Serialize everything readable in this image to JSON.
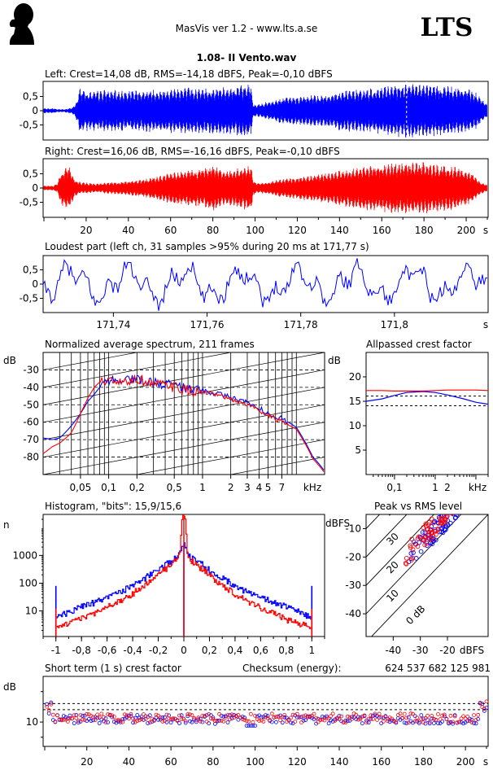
{
  "header": {
    "app_title": "MasVis ver 1.2 - www.lts.a.se",
    "logo_text": "LTS",
    "file_title": "1.08- II Vento.wav"
  },
  "colors": {
    "left": "#0000ff",
    "right": "#ff0000",
    "axes": "#000000"
  },
  "chart_data": [
    {
      "id": "left_wave",
      "type": "line",
      "title": "Left: Crest=14,08 dB, RMS=-14,18 dBFS, Peak=-0,10 dBFS",
      "ylim": [
        -1,
        1
      ],
      "yticks": [
        0.5,
        0,
        -0.5
      ],
      "ytick_labels": [
        "0,5",
        "0",
        "-0,5"
      ],
      "xlim": [
        0,
        210
      ],
      "grid": false,
      "envelope": {
        "x": [
          0,
          3,
          5,
          7,
          8,
          10,
          12,
          14,
          16,
          17,
          18,
          20,
          25,
          30,
          35,
          40,
          45,
          50,
          55,
          60,
          65,
          70,
          75,
          80,
          85,
          90,
          95,
          98,
          99,
          100,
          101,
          105,
          110,
          115,
          120,
          125,
          130,
          135,
          140,
          145,
          150,
          155,
          160,
          165,
          170,
          172,
          175,
          180,
          185,
          190,
          195,
          200,
          203,
          205,
          207,
          210
        ],
        "y": [
          0.09,
          0.08,
          0.09,
          0.05,
          0.06,
          0.05,
          0.08,
          0.12,
          0.35,
          0.75,
          0.85,
          0.72,
          0.7,
          0.75,
          0.72,
          0.72,
          0.73,
          0.76,
          0.74,
          0.8,
          0.82,
          0.82,
          0.8,
          0.82,
          0.84,
          0.88,
          0.92,
          0.95,
          0.3,
          0.2,
          0.22,
          0.3,
          0.4,
          0.5,
          0.5,
          0.55,
          0.55,
          0.6,
          0.7,
          0.75,
          0.75,
          0.8,
          0.85,
          0.9,
          0.95,
          0.98,
          0.95,
          0.95,
          0.92,
          0.9,
          0.85,
          0.8,
          0.7,
          0.6,
          0.4,
          0.2
        ]
      },
      "marker_x": 171.77
    },
    {
      "id": "right_wave",
      "type": "line",
      "title": "Right: Crest=16,06 dB, RMS=-16,16 dBFS, Peak=-0,10 dBFS",
      "ylim": [
        -1,
        1
      ],
      "yticks": [
        0.5,
        0,
        -0.5
      ],
      "ytick_labels": [
        "0,5",
        "0",
        "-0,5"
      ],
      "xlim": [
        0,
        210
      ],
      "grid": false,
      "xticks": [
        20,
        40,
        60,
        80,
        100,
        120,
        140,
        160,
        180,
        200
      ],
      "xunit": "s",
      "envelope": {
        "x": [
          0,
          5,
          7,
          8,
          10,
          12,
          14,
          15,
          18,
          20,
          25,
          30,
          35,
          40,
          45,
          50,
          55,
          60,
          65,
          70,
          75,
          80,
          85,
          90,
          95,
          98,
          99,
          100,
          102,
          105,
          110,
          115,
          120,
          125,
          130,
          135,
          140,
          145,
          150,
          155,
          160,
          165,
          170,
          175,
          180,
          185,
          190,
          195,
          200,
          203,
          205,
          207,
          210
        ],
        "y": [
          0.08,
          0.08,
          0.2,
          0.55,
          0.7,
          0.8,
          0.5,
          0.3,
          0.2,
          0.2,
          0.15,
          0.2,
          0.22,
          0.25,
          0.3,
          0.35,
          0.45,
          0.55,
          0.6,
          0.65,
          0.7,
          0.85,
          0.6,
          0.65,
          0.75,
          0.9,
          0.35,
          0.2,
          0.18,
          0.2,
          0.3,
          0.35,
          0.4,
          0.45,
          0.5,
          0.55,
          0.65,
          0.7,
          0.75,
          0.8,
          0.85,
          0.9,
          0.9,
          0.9,
          0.92,
          0.85,
          0.8,
          0.75,
          0.6,
          0.5,
          0.3,
          0.2,
          0.1
        ]
      }
    },
    {
      "id": "loudest",
      "type": "line",
      "title": "Loudest part (left  ch, 31 samples >95% during 20 ms at 171,77 s)",
      "ylim": [
        -1,
        1
      ],
      "yticks": [
        0.5,
        0,
        -0.5
      ],
      "ytick_labels": [
        "0,5",
        "0",
        "-0,5"
      ],
      "xlim": [
        171.725,
        171.82
      ],
      "xunit": "s",
      "xticks": [
        171.74,
        171.76,
        171.78,
        171.8
      ],
      "xtick_labels": [
        "171,74",
        "171,76",
        "171,78",
        "171,8"
      ]
    },
    {
      "id": "spectrum",
      "type": "line",
      "title": "Normalized average spectrum, 211 frames",
      "ylabel": "dB",
      "xunit": "kHz",
      "xscale": "log",
      "xlim": [
        0.02,
        20
      ],
      "ylim": [
        -90,
        -20
      ],
      "yticks": [
        -30,
        -40,
        -50,
        -60,
        -70,
        -80
      ],
      "ytick_labels": [
        "-30",
        "-40",
        "-50",
        "-60",
        "-70",
        "-80"
      ],
      "xticks": [
        0.05,
        0.1,
        0.2,
        0.5,
        1,
        2,
        3,
        4,
        5,
        7
      ],
      "xtick_labels": [
        "0,05",
        "0,1",
        "0,2",
        "0,5",
        "1",
        "2",
        "3",
        "4",
        "5",
        "7"
      ],
      "series": [
        {
          "color": "left",
          "x": [
            0.02,
            0.025,
            0.03,
            0.04,
            0.05,
            0.06,
            0.07,
            0.08,
            0.1,
            0.12,
            0.15,
            0.2,
            0.25,
            0.3,
            0.4,
            0.5,
            0.7,
            1,
            1.5,
            2,
            3,
            4,
            5,
            7,
            10,
            12,
            15,
            20
          ],
          "y": [
            -69,
            -70,
            -69,
            -62,
            -55,
            -48,
            -44,
            -40,
            -36,
            -37,
            -35,
            -35,
            -36,
            -37,
            -38,
            -39,
            -41,
            -42,
            -44,
            -46,
            -49,
            -52,
            -55,
            -58,
            -63,
            -70,
            -80,
            -88
          ]
        },
        {
          "color": "right",
          "x": [
            0.02,
            0.025,
            0.03,
            0.04,
            0.05,
            0.06,
            0.07,
            0.08,
            0.1,
            0.12,
            0.15,
            0.2,
            0.25,
            0.3,
            0.4,
            0.5,
            0.7,
            1,
            1.5,
            2,
            3,
            4,
            5,
            7,
            10,
            12,
            15,
            20
          ],
          "y": [
            -78,
            -74,
            -72,
            -66,
            -55,
            -46,
            -40,
            -37,
            -36,
            -38,
            -37,
            -35,
            -37,
            -38,
            -39,
            -40,
            -42,
            -43,
            -45,
            -47,
            -50,
            -53,
            -56,
            -60,
            -64,
            -71,
            -81,
            -89
          ]
        }
      ]
    },
    {
      "id": "allpass",
      "type": "line",
      "title": "Allpassed crest factor",
      "ylabel": "dB",
      "xunit": "kHz",
      "xscale": "log",
      "xlim": [
        0.02,
        20
      ],
      "ylim": [
        0,
        25
      ],
      "yticks": [
        20,
        15,
        10,
        5
      ],
      "ytick_labels": [
        "20",
        "15",
        "10",
        "5"
      ],
      "xticks": [
        0.1,
        1,
        2
      ],
      "xtick_labels": [
        "0,1",
        "1",
        "2"
      ],
      "reference_lines": [
        14.08,
        16.06
      ],
      "series": [
        {
          "color": "left",
          "x": [
            0.02,
            0.05,
            0.1,
            0.2,
            0.5,
            1,
            2,
            5,
            10,
            20
          ],
          "y": [
            15,
            15.5,
            16.2,
            16.8,
            17,
            16.8,
            16.3,
            15.5,
            14.8,
            14.4
          ]
        },
        {
          "color": "right",
          "x": [
            0.02,
            0.05,
            0.1,
            0.2,
            0.5,
            1,
            2,
            5,
            10,
            20
          ],
          "y": [
            17.2,
            17.2,
            17.1,
            17.1,
            17.1,
            17.2,
            17.3,
            17.3,
            17.3,
            17.2
          ]
        }
      ]
    },
    {
      "id": "histogram",
      "type": "line",
      "title": "Histogram, \"bits\": 15,9/15,6",
      "ylabel": "n",
      "yscale": "log",
      "ylim": [
        1.2,
        30000
      ],
      "xlim": [
        -1.1,
        1.1
      ],
      "yticks": [
        1000,
        100,
        10
      ],
      "ytick_labels": [
        "1000",
        "100",
        "10"
      ],
      "xticks": [
        -1,
        -0.8,
        -0.6,
        -0.4,
        -0.2,
        0,
        0.2,
        0.4,
        0.6,
        0.8,
        1
      ],
      "xtick_labels": [
        "-1",
        "-0,8",
        "-0,6",
        "-0,4",
        "-0,2",
        "0",
        "0,2",
        "0,4",
        "0,6",
        "0,8",
        "1"
      ],
      "series": [
        {
          "color": "left",
          "x": [
            0,
            0.02,
            0.05,
            0.1,
            0.2,
            0.3,
            0.4,
            0.5,
            0.6,
            0.7,
            0.8,
            0.9,
            0.95,
            0.99
          ],
          "y": [
            2500,
            1400,
            900,
            600,
            300,
            150,
            80,
            45,
            30,
            20,
            14,
            9,
            7,
            6
          ],
          "edge_spike": 80
        },
        {
          "color": "right",
          "x": [
            0,
            0.02,
            0.05,
            0.1,
            0.2,
            0.3,
            0.4,
            0.5,
            0.6,
            0.7,
            0.8,
            0.9,
            0.95,
            0.99
          ],
          "y": [
            30000,
            1200,
            700,
            420,
            180,
            80,
            40,
            22,
            13,
            8,
            5,
            3.5,
            3,
            2.5
          ],
          "edge_spike": 12
        }
      ]
    },
    {
      "id": "peak_rms",
      "type": "scatter",
      "title": "Peak vs RMS level",
      "ylabel": "dBFS",
      "xunit": "dBFS",
      "xlim": [
        -50,
        -5
      ],
      "ylim": [
        -48,
        -5
      ],
      "xticks": [
        -40,
        -30,
        -20
      ],
      "xtick_labels": [
        "-40",
        "-30",
        "-20"
      ],
      "yticks": [
        -10,
        -20,
        -30,
        -40
      ],
      "ytick_labels": [
        "-10",
        "-20",
        "-30",
        "-40"
      ],
      "crest_lines": [
        0,
        10,
        20,
        30,
        40
      ],
      "crest_labels": [
        "0 dB",
        "10",
        "20",
        "30",
        "40"
      ],
      "series": [
        {
          "color": "left",
          "cluster": {
            "x_from": -36,
            "x_to": -10,
            "offset": 14
          }
        },
        {
          "color": "right",
          "cluster": {
            "x_from": -36,
            "x_to": -10,
            "offset": 16
          }
        }
      ]
    },
    {
      "id": "short_crest",
      "type": "scatter",
      "title": "Short term (1 s) crest factor",
      "checksum_label": "Checksum (energy):",
      "checksum_value": "624 537 682 125 981",
      "ylabel": "dB",
      "xunit": "s",
      "xlim": [
        0,
        210
      ],
      "ylim": [
        2,
        25
      ],
      "yticks": [
        10
      ],
      "ytick_labels": [
        "10"
      ],
      "reference_lines": [
        14.08,
        16.06
      ],
      "xticks": [
        20,
        40,
        60,
        80,
        100,
        120,
        140,
        160,
        180,
        200
      ],
      "series": [
        {
          "color": "left",
          "mean": 10.8
        },
        {
          "color": "right",
          "mean": 11.3
        }
      ]
    }
  ]
}
